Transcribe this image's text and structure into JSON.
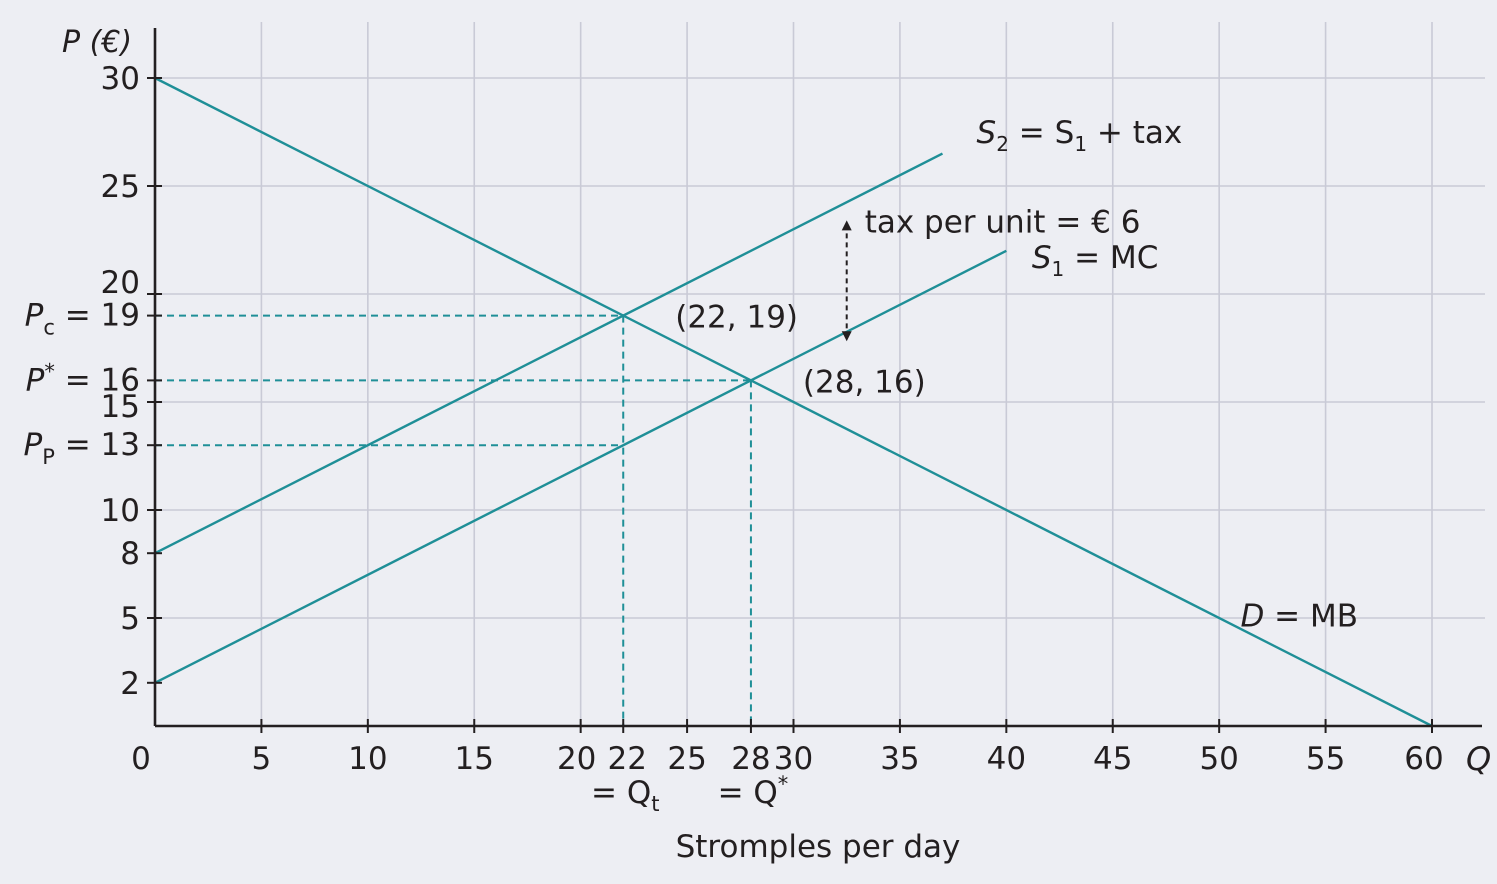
{
  "chart_data": {
    "type": "line",
    "title": "",
    "xlabel": "Stromples per day",
    "ylabel": "P (€)",
    "x_axis_letter": "Q",
    "xlim": [
      0,
      60
    ],
    "ylim": [
      0,
      30
    ],
    "grid": true,
    "colors": {
      "background": "#edeef3",
      "grid": "#c9cad6",
      "curve": "#1f8f97",
      "axis": "#231f20",
      "text": "#231f20"
    },
    "x_ticks": [
      {
        "value": 0,
        "label": "0"
      },
      {
        "value": 5,
        "label": "5"
      },
      {
        "value": 10,
        "label": "10"
      },
      {
        "value": 15,
        "label": "15"
      },
      {
        "value": 20,
        "label": "20"
      },
      {
        "value": 22,
        "label": "22"
      },
      {
        "value": 25,
        "label": "25"
      },
      {
        "value": 28,
        "label": "28"
      },
      {
        "value": 30,
        "label": "30"
      },
      {
        "value": 35,
        "label": "35"
      },
      {
        "value": 40,
        "label": "40"
      },
      {
        "value": 45,
        "label": "45"
      },
      {
        "value": 50,
        "label": "50"
      },
      {
        "value": 55,
        "label": "55"
      },
      {
        "value": 60,
        "label": "60"
      }
    ],
    "x_tick_sublabels": [
      {
        "value": 22,
        "label": "= Q",
        "subscript": "t"
      },
      {
        "value": 28,
        "label": "= Q",
        "superscript": "*"
      }
    ],
    "y_ticks": [
      {
        "value": 2,
        "label": "2"
      },
      {
        "value": 5,
        "label": "5"
      },
      {
        "value": 8,
        "label": "8"
      },
      {
        "value": 10,
        "label": "10"
      },
      {
        "value": 15,
        "label": "15"
      },
      {
        "value": 20,
        "label": "20"
      },
      {
        "value": 25,
        "label": "25"
      },
      {
        "value": 30,
        "label": "30"
      }
    ],
    "y_special_ticks": [
      {
        "value": 19,
        "prefix": "P",
        "subscript": "c",
        "superscript": "",
        "suffix": " = 19"
      },
      {
        "value": 16,
        "prefix": "P",
        "subscript": "",
        "superscript": "*",
        "suffix": " = 16"
      },
      {
        "value": 13,
        "prefix": "P",
        "subscript": "P",
        "superscript": "",
        "suffix": " = 13"
      }
    ],
    "series": [
      {
        "name": "D = MB",
        "x": [
          0,
          60
        ],
        "y": [
          30,
          0
        ]
      },
      {
        "name": "S1 = MC",
        "x": [
          0,
          40
        ],
        "y": [
          2,
          22
        ]
      },
      {
        "name": "S2 = S1 + tax",
        "x": [
          0,
          37
        ],
        "y": [
          8,
          26.5
        ]
      }
    ],
    "series_labels": [
      {
        "text_a": "D",
        "text_b": " = MB",
        "x": 51,
        "y": 4.6
      },
      {
        "text_a": "S",
        "sub": "1",
        "text_b": " = MC",
        "x": 41.2,
        "y": 21.2
      },
      {
        "text_a": "S",
        "sub": "2",
        "text_b": " = S",
        "sub2": "1",
        "text_c": " + tax",
        "x": 38.6,
        "y": 27
      }
    ],
    "points": [
      {
        "x": 22,
        "y": 19,
        "label": "(22, 19)"
      },
      {
        "x": 28,
        "y": 16,
        "label": "(28, 16)"
      }
    ],
    "dashed_guides": [
      {
        "x": 22,
        "y": 19
      },
      {
        "x": 28,
        "y": 16
      },
      {
        "x": 22,
        "y": 13
      }
    ],
    "annotations": [
      {
        "text": "tax per unit = € 6",
        "x": 32.5,
        "y1": 23.5,
        "y2": 18
      }
    ]
  }
}
